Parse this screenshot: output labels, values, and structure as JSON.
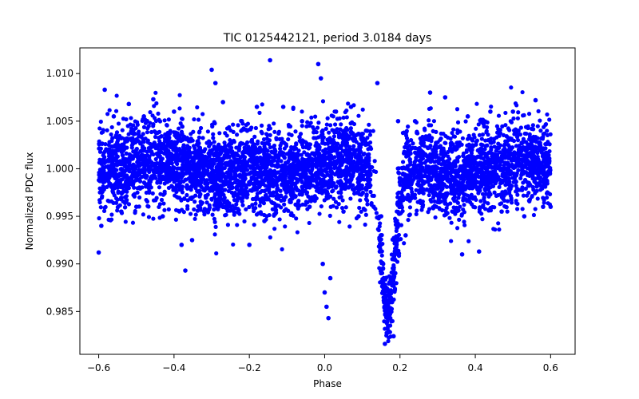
{
  "chart_data": {
    "type": "scatter",
    "title": "TIC 0125442121, period 3.0184 days",
    "xlabel": "Phase",
    "ylabel": "Normalized PDC flux",
    "xlim": [
      -0.65,
      0.665
    ],
    "ylim": [
      0.9805,
      1.0127
    ],
    "x_ticks": [
      -0.6,
      -0.4,
      -0.2,
      0.0,
      0.2,
      0.4,
      0.6
    ],
    "x_tick_labels": [
      "−0.6",
      "−0.4",
      "−0.2",
      "0.0",
      "0.2",
      "0.4",
      "0.6"
    ],
    "y_ticks": [
      0.985,
      0.99,
      0.995,
      1.0,
      1.005,
      1.01
    ],
    "y_tick_labels": [
      "0.985",
      "0.990",
      "0.995",
      "1.000",
      "1.005",
      "1.010"
    ],
    "grid": false,
    "series": [
      {
        "name": "PDC flux",
        "color": "#0000ff",
        "marker": "circle",
        "description_points": [
          {
            "x": -0.6,
            "y": 0.9912
          },
          {
            "x": -0.584,
            "y": 1.0083
          },
          {
            "x": -0.593,
            "y": 0.994
          },
          {
            "x": -0.56,
            "y": 1.0055
          },
          {
            "x": -0.54,
            "y": 0.9955
          },
          {
            "x": -0.52,
            "y": 1.0068
          },
          {
            "x": -0.5,
            "y": 0.996
          },
          {
            "x": -0.48,
            "y": 1.0055
          },
          {
            "x": -0.455,
            "y": 1.0073
          },
          {
            "x": -0.43,
            "y": 0.995
          },
          {
            "x": -0.4,
            "y": 1.006
          },
          {
            "x": -0.38,
            "y": 0.992
          },
          {
            "x": -0.37,
            "y": 0.9893
          },
          {
            "x": -0.352,
            "y": 0.9925
          },
          {
            "x": -0.32,
            "y": 0.9955
          },
          {
            "x": -0.3,
            "y": 1.0104
          },
          {
            "x": -0.29,
            "y": 1.009
          },
          {
            "x": -0.27,
            "y": 1.007
          },
          {
            "x": -0.25,
            "y": 0.996
          },
          {
            "x": -0.22,
            "y": 1.005
          },
          {
            "x": -0.2,
            "y": 0.992
          },
          {
            "x": -0.18,
            "y": 1.0065
          },
          {
            "x": -0.16,
            "y": 0.9945
          },
          {
            "x": -0.145,
            "y": 1.0114
          },
          {
            "x": -0.13,
            "y": 0.996
          },
          {
            "x": -0.11,
            "y": 1.0065
          },
          {
            "x": -0.09,
            "y": 0.9965
          },
          {
            "x": -0.06,
            "y": 1.005
          },
          {
            "x": -0.04,
            "y": 0.996
          },
          {
            "x": -0.03,
            "y": 0.997
          },
          {
            "x": -0.017,
            "y": 1.011
          },
          {
            "x": -0.01,
            "y": 1.0095
          },
          {
            "x": -0.005,
            "y": 0.99
          },
          {
            "x": 0.0,
            "y": 0.987
          },
          {
            "x": 0.005,
            "y": 0.9855
          },
          {
            "x": 0.01,
            "y": 0.9843
          },
          {
            "x": 0.015,
            "y": 0.9885
          },
          {
            "x": 0.03,
            "y": 1.006
          },
          {
            "x": 0.05,
            "y": 0.9955
          },
          {
            "x": 0.07,
            "y": 1.0065
          },
          {
            "x": 0.09,
            "y": 0.995
          },
          {
            "x": 0.11,
            "y": 1.004
          },
          {
            "x": 0.13,
            "y": 0.996
          },
          {
            "x": 0.14,
            "y": 1.009
          },
          {
            "x": 0.15,
            "y": 0.995
          },
          {
            "x": 0.155,
            "y": 0.9895
          },
          {
            "x": 0.16,
            "y": 0.986
          },
          {
            "x": 0.165,
            "y": 0.9838
          },
          {
            "x": 0.17,
            "y": 0.985
          },
          {
            "x": 0.175,
            "y": 0.987
          },
          {
            "x": 0.18,
            "y": 0.9905
          },
          {
            "x": 0.16,
            "y": 0.9816
          },
          {
            "x": 0.183,
            "y": 0.9824
          },
          {
            "x": 0.195,
            "y": 1.005
          },
          {
            "x": 0.215,
            "y": 0.993
          },
          {
            "x": 0.24,
            "y": 1.005
          },
          {
            "x": 0.26,
            "y": 0.996
          },
          {
            "x": 0.28,
            "y": 1.008
          },
          {
            "x": 0.3,
            "y": 0.9965
          },
          {
            "x": 0.32,
            "y": 1.0075
          },
          {
            "x": 0.34,
            "y": 0.9955
          },
          {
            "x": 0.365,
            "y": 0.991
          },
          {
            "x": 0.38,
            "y": 1.0055
          },
          {
            "x": 0.41,
            "y": 0.9913
          },
          {
            "x": 0.42,
            "y": 0.996
          },
          {
            "x": 0.44,
            "y": 1.006
          },
          {
            "x": 0.47,
            "y": 0.9955
          },
          {
            "x": 0.5,
            "y": 1.006
          },
          {
            "x": 0.53,
            "y": 0.995
          },
          {
            "x": 0.56,
            "y": 1.0072
          },
          {
            "x": 0.58,
            "y": 0.996
          },
          {
            "x": 0.6,
            "y": 0.996
          }
        ]
      }
    ]
  }
}
